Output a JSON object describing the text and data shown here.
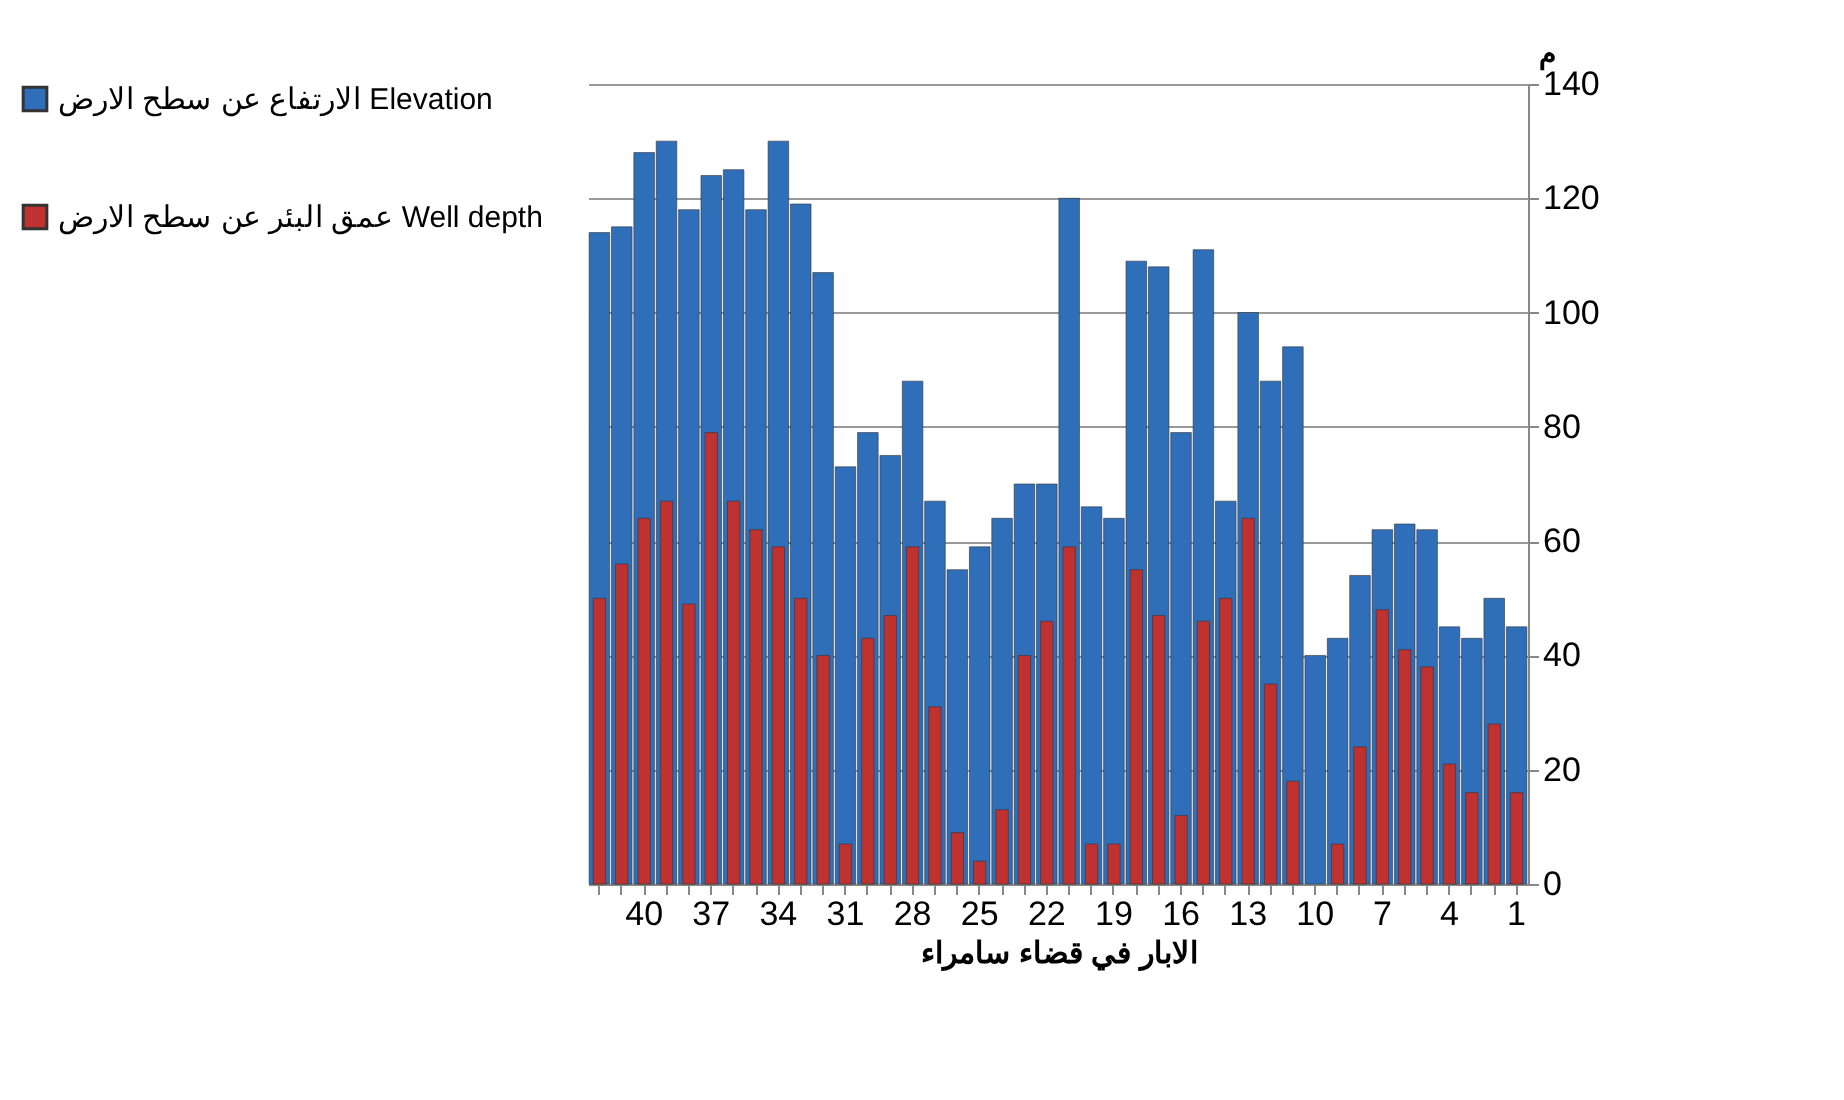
{
  "chart_data": {
    "type": "bar",
    "xlabel": "الابار في قضاء سامراء",
    "ylabel": "م",
    "categories": [
      null,
      null,
      "40",
      null,
      null,
      "37",
      null,
      null,
      "34",
      null,
      null,
      "31",
      null,
      null,
      "28",
      null,
      null,
      "25",
      null,
      null,
      "22",
      null,
      null,
      "19",
      null,
      null,
      "16",
      null,
      null,
      "13",
      null,
      null,
      "10",
      null,
      null,
      "7",
      null,
      null,
      "4",
      null,
      null,
      "1"
    ],
    "series": [
      {
        "name": "الارتفاع عن سطح الارض Elevation",
        "color": "#2f6fba",
        "values": [
          114,
          115,
          128,
          130,
          118,
          124,
          125,
          118,
          130,
          119,
          107,
          73,
          79,
          75,
          88,
          67,
          55,
          59,
          64,
          70,
          70,
          120,
          66,
          64,
          109,
          108,
          79,
          111,
          67,
          100,
          88,
          94,
          40,
          43,
          54,
          62,
          63,
          62,
          45,
          43,
          50,
          45
        ]
      },
      {
        "name": "عمق البئر عن سطح الارض  Well depth",
        "color": "#c0322f",
        "values": [
          50,
          56,
          64,
          67,
          49,
          79,
          67,
          62,
          59,
          50,
          40,
          7,
          43,
          47,
          59,
          31,
          9,
          4,
          13,
          40,
          46,
          59,
          7,
          7,
          55,
          47,
          12,
          46,
          50,
          64,
          35,
          18,
          null,
          7,
          24,
          48,
          41,
          38,
          21,
          16,
          28,
          16
        ]
      }
    ],
    "ylim": [
      0,
      140
    ],
    "yticks": [
      0,
      20,
      40,
      60,
      80,
      100,
      120,
      140
    ],
    "grid": "y",
    "legend": "left"
  }
}
